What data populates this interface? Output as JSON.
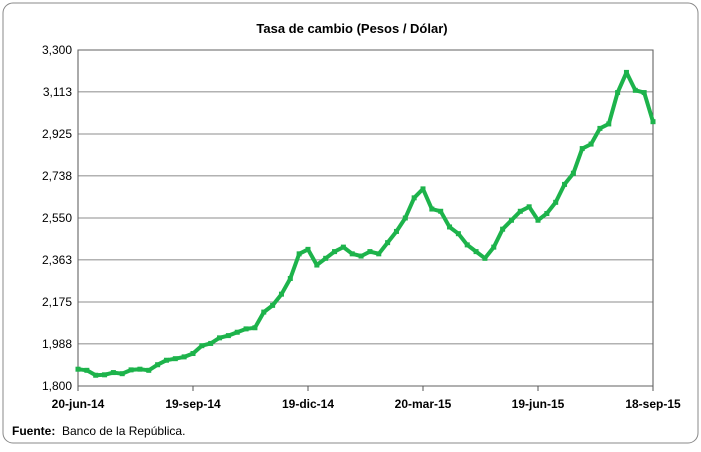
{
  "chart_data": {
    "type": "line",
    "title": "Tasa de cambio (Pesos / Dólar)",
    "source_label": "Fuente:",
    "source": "Banco de la República.",
    "x": [
      "2014-06-20",
      "2014-06-27",
      "2014-07-04",
      "2014-07-11",
      "2014-07-18",
      "2014-07-25",
      "2014-08-01",
      "2014-08-08",
      "2014-08-15",
      "2014-08-22",
      "2014-08-29",
      "2014-09-05",
      "2014-09-12",
      "2014-09-19",
      "2014-09-26",
      "2014-10-03",
      "2014-10-10",
      "2014-10-17",
      "2014-10-24",
      "2014-10-31",
      "2014-11-07",
      "2014-11-14",
      "2014-11-21",
      "2014-11-28",
      "2014-12-05",
      "2014-12-12",
      "2014-12-19",
      "2014-12-26",
      "2015-01-02",
      "2015-01-09",
      "2015-01-16",
      "2015-01-23",
      "2015-01-30",
      "2015-02-06",
      "2015-02-13",
      "2015-02-20",
      "2015-02-27",
      "2015-03-06",
      "2015-03-13",
      "2015-03-20",
      "2015-03-27",
      "2015-04-03",
      "2015-04-10",
      "2015-04-17",
      "2015-04-24",
      "2015-05-01",
      "2015-05-08",
      "2015-05-15",
      "2015-05-22",
      "2015-05-29",
      "2015-06-05",
      "2015-06-12",
      "2015-06-19",
      "2015-06-26",
      "2015-07-03",
      "2015-07-10",
      "2015-07-17",
      "2015-07-24",
      "2015-07-31",
      "2015-08-07",
      "2015-08-14",
      "2015-08-21",
      "2015-08-28",
      "2015-09-04",
      "2015-09-11",
      "2015-09-18"
    ],
    "series": [
      {
        "name": "Tasa de cambio",
        "color": "#1db34b",
        "values": [
          1875,
          1870,
          1848,
          1850,
          1860,
          1855,
          1872,
          1875,
          1870,
          1895,
          1915,
          1922,
          1930,
          1945,
          1980,
          1990,
          2015,
          2025,
          2040,
          2055,
          2060,
          2130,
          2160,
          2210,
          2280,
          2390,
          2410,
          2340,
          2370,
          2400,
          2420,
          2390,
          2380,
          2400,
          2390,
          2440,
          2490,
          2550,
          2640,
          2680,
          2590,
          2580,
          2510,
          2480,
          2430,
          2400,
          2370,
          2420,
          2500,
          2540,
          2580,
          2600,
          2540,
          2570,
          2620,
          2700,
          2750,
          2860,
          2880,
          2950,
          2970,
          3110,
          3200,
          3120,
          3110,
          2980
        ]
      }
    ],
    "xlim": [
      "2014-06-20",
      "2015-09-18"
    ],
    "xticks": [
      {
        "value": "2014-06-20",
        "label": "20-jun-14"
      },
      {
        "value": "2014-09-19",
        "label": "19-sep-14"
      },
      {
        "value": "2014-12-19",
        "label": "19-dic-14"
      },
      {
        "value": "2015-03-20",
        "label": "20-mar-15"
      },
      {
        "value": "2015-06-19",
        "label": "19-jun-15"
      },
      {
        "value": "2015-09-18",
        "label": "18-sep-15"
      }
    ],
    "ylim": [
      1800,
      3300
    ],
    "yticks": [
      {
        "value": 1800,
        "label": "1,800"
      },
      {
        "value": 1988,
        "label": "1,988"
      },
      {
        "value": 2175,
        "label": "2,175"
      },
      {
        "value": 2363,
        "label": "2,363"
      },
      {
        "value": 2550,
        "label": "2,550"
      },
      {
        "value": 2738,
        "label": "2,738"
      },
      {
        "value": 2925,
        "label": "2,925"
      },
      {
        "value": 3113,
        "label": "3,113"
      },
      {
        "value": 3300,
        "label": "3,300"
      }
    ],
    "grid": true
  }
}
